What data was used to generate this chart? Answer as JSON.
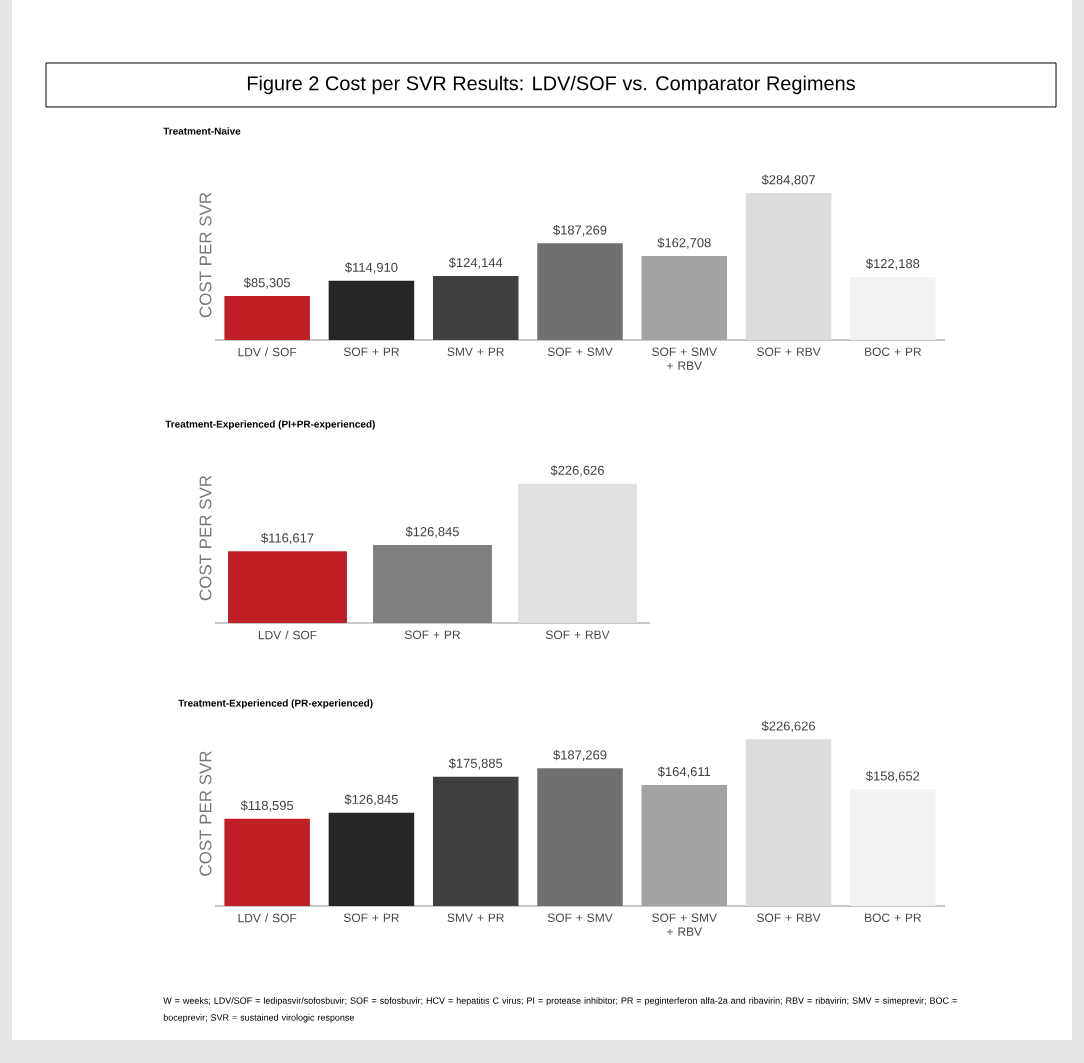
{
  "chart_data": [
    {
      "type": "bar",
      "title": "Figure 2 Cost per SVR Results: LDV/SOF vs. Comparator Regimens",
      "subtitle": "Treatment-Naive",
      "ylabel": "COST PER SVR",
      "categories": [
        "LDV / SOF",
        "SOF + PR",
        "SMV + PR",
        "SOF + SMV",
        "SOF + SMV + RBV",
        "SOF + RBV",
        "BOC + PR"
      ],
      "values": [
        85305,
        114910,
        124144,
        187269,
        162708,
        284807,
        122188
      ],
      "value_labels": [
        "$85,305",
        "$114,910",
        "$124,144",
        "$187,269",
        "$162,708",
        "$284,807",
        "$122,188"
      ],
      "colors": [
        "#c01f26",
        "#262626",
        "#404040",
        "#707070",
        "#a3a3a3",
        "#dcdcdc",
        "#f2f2f2"
      ]
    },
    {
      "type": "bar",
      "title": "Treatment-Experienced (PI+PR-experienced)",
      "ylabel": "COST PER SVR",
      "categories": [
        "LDV / SOF",
        "SOF + PR",
        "SOF + RBV"
      ],
      "values": [
        116617,
        126845,
        226626
      ],
      "value_labels": [
        "$116,617",
        "$126,845",
        "$226,626"
      ],
      "colors": [
        "#c01f26",
        "#7f7f7f",
        "#e0e0e0"
      ]
    },
    {
      "type": "bar",
      "title": "Treatment-Experienced (PR-experienced)",
      "ylabel": "COST PER SVR",
      "categories": [
        "LDV / SOF",
        "SOF + PR",
        "SMV + PR",
        "SOF + SMV",
        "SOF + SMV + RBV",
        "SOF + RBV",
        "BOC + PR"
      ],
      "values": [
        118595,
        126845,
        175885,
        187269,
        164611,
        226626,
        158652
      ],
      "value_labels": [
        "$118,595",
        "$126,845",
        "$175,885",
        "$187,269",
        "$164,611",
        "$226,626",
        "$158,652"
      ],
      "colors": [
        "#c01f26",
        "#262626",
        "#404040",
        "#707070",
        "#a3a3a3",
        "#dcdcdc",
        "#f2f2f2"
      ],
      "annotations": [
        "W = weeks; LDV/SOF = ledipasvir/sofosbuvir; SOF = sofosbuvir; HCV = hepatitis C virus; PI = protease inhibitor; PR = peginterferon alfa-2a and ribavirin; RBV = ribavirin; SMV = simeprevir; BOC = boceprevir; SVR = sustained virologic response"
      ]
    }
  ]
}
